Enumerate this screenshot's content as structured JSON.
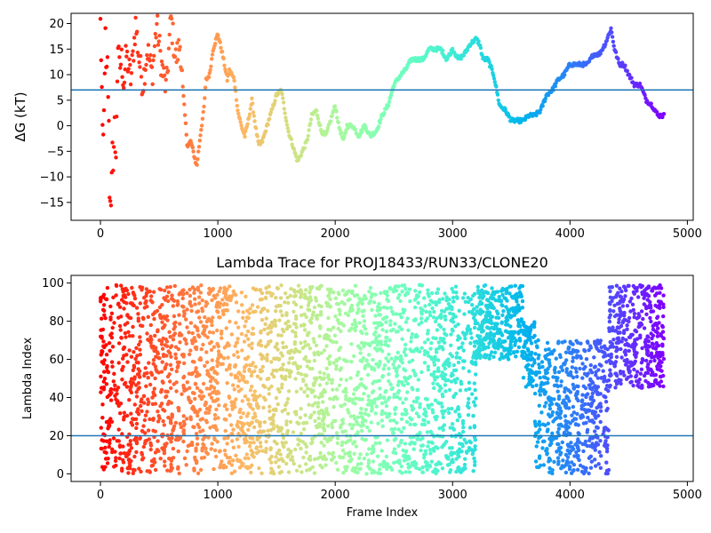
{
  "chart_data": [
    {
      "type": "scatter",
      "title": "",
      "xlabel": "",
      "ylabel": "ΔG (kT)",
      "xlim": [
        -250,
        5050
      ],
      "ylim": [
        -18.5,
        22
      ],
      "xticks": [
        0,
        1000,
        2000,
        3000,
        4000,
        5000
      ],
      "xtick_labels": [
        "0",
        "1000",
        "2000",
        "3000",
        "4000",
        "5000"
      ],
      "yticks": [
        -15,
        -10,
        -5,
        0,
        5,
        10,
        15,
        20
      ],
      "ytick_labels": [
        "−15",
        "−10",
        "−5",
        "0",
        "5",
        "10",
        "15",
        "20"
      ],
      "hline": 7,
      "hline_color": "#1f77b4",
      "colormap": "rainbow (red at early frames → violet at late frames)",
      "grid": false,
      "trend_points": [
        [
          0,
          20
        ],
        [
          10,
          10
        ],
        [
          20,
          -6
        ],
        [
          30,
          2
        ],
        [
          40,
          19
        ],
        [
          50,
          8
        ],
        [
          60,
          12
        ],
        [
          70,
          3
        ],
        [
          80,
          -16
        ],
        [
          90,
          -14
        ],
        [
          100,
          -3
        ],
        [
          110,
          -13
        ],
        [
          120,
          4
        ],
        [
          130,
          -11
        ],
        [
          140,
          6
        ],
        [
          150,
          16
        ],
        [
          160,
          11
        ],
        [
          180,
          13
        ],
        [
          200,
          8
        ],
        [
          220,
          14
        ],
        [
          260,
          9
        ],
        [
          300,
          20
        ],
        [
          330,
          13
        ],
        [
          360,
          8
        ],
        [
          400,
          15
        ],
        [
          440,
          10
        ],
        [
          480,
          20
        ],
        [
          520,
          12
        ],
        [
          560,
          7
        ],
        [
          600,
          21
        ],
        [
          640,
          13
        ],
        [
          680,
          16
        ],
        [
          700,
          8
        ],
        [
          720,
          2
        ],
        [
          740,
          -4
        ],
        [
          770,
          -3
        ],
        [
          800,
          -6
        ],
        [
          820,
          -8
        ],
        [
          850,
          -2
        ],
        [
          880,
          3
        ],
        [
          900,
          9
        ],
        [
          930,
          10
        ],
        [
          960,
          15
        ],
        [
          1000,
          18
        ],
        [
          1040,
          14
        ],
        [
          1080,
          9
        ],
        [
          1100,
          11
        ],
        [
          1140,
          9
        ],
        [
          1170,
          3
        ],
        [
          1200,
          0
        ],
        [
          1230,
          -2
        ],
        [
          1260,
          1
        ],
        [
          1290,
          5
        ],
        [
          1320,
          0
        ],
        [
          1350,
          -4
        ],
        [
          1380,
          -3
        ],
        [
          1420,
          0
        ],
        [
          1460,
          3
        ],
        [
          1500,
          6
        ],
        [
          1540,
          7
        ],
        [
          1570,
          3
        ],
        [
          1600,
          -1
        ],
        [
          1640,
          -4
        ],
        [
          1680,
          -7
        ],
        [
          1720,
          -5
        ],
        [
          1760,
          -3
        ],
        [
          1800,
          2
        ],
        [
          1840,
          3
        ],
        [
          1880,
          -1
        ],
        [
          1920,
          -2
        ],
        [
          1960,
          1
        ],
        [
          2000,
          4
        ],
        [
          2030,
          0
        ],
        [
          2070,
          -3
        ],
        [
          2100,
          0
        ],
        [
          2150,
          0
        ],
        [
          2200,
          -2
        ],
        [
          2250,
          0
        ],
        [
          2300,
          -2
        ],
        [
          2350,
          -1
        ],
        [
          2400,
          2
        ],
        [
          2450,
          4
        ],
        [
          2500,
          8
        ],
        [
          2560,
          10
        ],
        [
          2600,
          11
        ],
        [
          2650,
          13
        ],
        [
          2700,
          13
        ],
        [
          2750,
          13
        ],
        [
          2800,
          15
        ],
        [
          2850,
          15
        ],
        [
          2900,
          15
        ],
        [
          2950,
          13
        ],
        [
          3000,
          15
        ],
        [
          3050,
          13
        ],
        [
          3100,
          14
        ],
        [
          3150,
          16
        ],
        [
          3200,
          17
        ],
        [
          3230,
          16
        ],
        [
          3260,
          13
        ],
        [
          3300,
          13
        ],
        [
          3350,
          10
        ],
        [
          3400,
          4
        ],
        [
          3450,
          3
        ],
        [
          3500,
          1
        ],
        [
          3550,
          1
        ],
        [
          3600,
          1
        ],
        [
          3650,
          2
        ],
        [
          3700,
          2
        ],
        [
          3750,
          3
        ],
        [
          3800,
          6
        ],
        [
          3850,
          7
        ],
        [
          3900,
          9
        ],
        [
          3950,
          10
        ],
        [
          4000,
          12
        ],
        [
          4050,
          12
        ],
        [
          4100,
          12
        ],
        [
          4150,
          12
        ],
        [
          4200,
          14
        ],
        [
          4250,
          14
        ],
        [
          4300,
          16
        ],
        [
          4350,
          19
        ],
        [
          4380,
          15
        ],
        [
          4420,
          12
        ],
        [
          4460,
          12
        ],
        [
          4500,
          10
        ],
        [
          4550,
          8
        ],
        [
          4600,
          8
        ],
        [
          4650,
          5
        ],
        [
          4700,
          4
        ],
        [
          4750,
          2
        ],
        [
          4800,
          2
        ]
      ]
    },
    {
      "type": "scatter",
      "title": "Lambda Trace for PROJ18433/RUN33/CLONE20",
      "xlabel": "Frame Index",
      "ylabel": "Lambda Index",
      "xlim": [
        -250,
        5050
      ],
      "ylim": [
        -4,
        104
      ],
      "xticks": [
        0,
        1000,
        2000,
        3000,
        4000,
        5000
      ],
      "xtick_labels": [
        "0",
        "1000",
        "2000",
        "3000",
        "4000",
        "5000"
      ],
      "yticks": [
        0,
        20,
        40,
        60,
        80,
        100
      ],
      "ytick_labels": [
        "0",
        "20",
        "40",
        "60",
        "80",
        "100"
      ],
      "hline": 20,
      "hline_color": "#1f77b4",
      "colormap": "rainbow (red at early frames → violet at late frames)",
      "grid": false,
      "segments": [
        {
          "x_start": 0,
          "x_end": 700,
          "y_min": 0,
          "y_max": 99
        },
        {
          "x_start": 700,
          "x_end": 3000,
          "y_min": 0,
          "y_max": 99
        },
        {
          "x_start": 3000,
          "x_end": 3200,
          "y_min": 0,
          "y_max": 99
        },
        {
          "x_start": 3200,
          "x_end": 3600,
          "y_min": 60,
          "y_max": 99
        },
        {
          "x_start": 3600,
          "x_end": 3700,
          "y_min": 45,
          "y_max": 80
        },
        {
          "x_start": 3700,
          "x_end": 4330,
          "y_min": 0,
          "y_max": 70
        },
        {
          "x_start": 4330,
          "x_end": 4800,
          "y_min": 45,
          "y_max": 99
        }
      ]
    }
  ]
}
